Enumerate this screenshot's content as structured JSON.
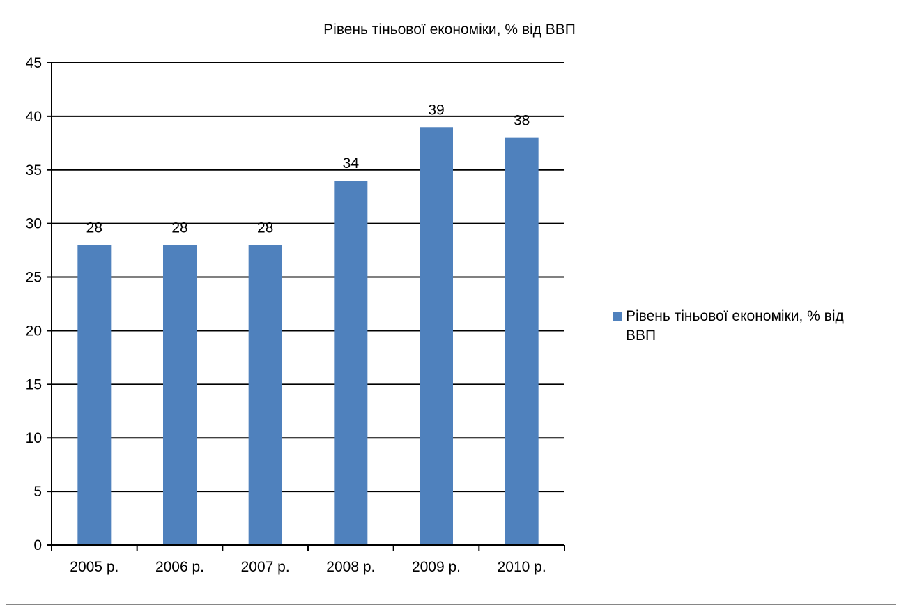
{
  "colors": {
    "bar": "#4F81BD",
    "grid": "#000000",
    "frame": "#868686"
  },
  "chart_data": {
    "type": "bar",
    "title": "Рівень тіньової економіки, % від ВВП",
    "categories": [
      "2005 р.",
      "2006 р.",
      "2007 р.",
      "2008 р.",
      "2009 р.",
      "2010 р."
    ],
    "series": [
      {
        "name": "Рівень тіньової економіки, % від ВВП",
        "values": [
          28,
          28,
          28,
          34,
          39,
          38
        ]
      }
    ],
    "data_labels": [
      "28",
      "28",
      "28",
      "34",
      "39",
      "38"
    ],
    "ylim": [
      0,
      45
    ],
    "yticks": [
      "0",
      "5",
      "10",
      "15",
      "20",
      "25",
      "30",
      "35",
      "40",
      "45"
    ],
    "grid": true,
    "legend_position": "right"
  }
}
